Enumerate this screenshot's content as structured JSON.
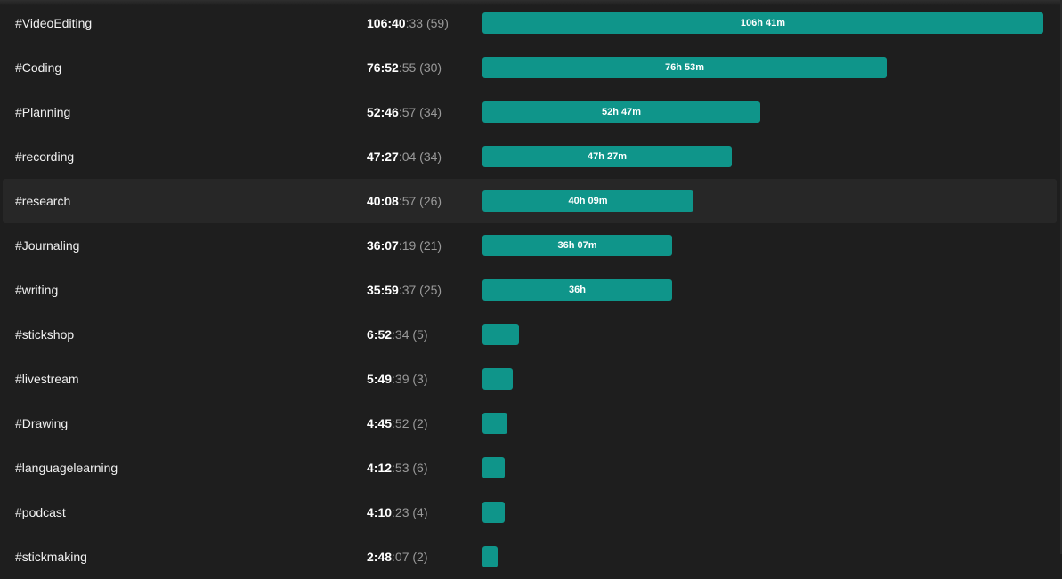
{
  "tag_stats": {
    "max_minutes": 6400.55,
    "rows": [
      {
        "tag": "#VideoEditing",
        "hm": "106:40",
        "sec": ":33",
        "count": "(59)",
        "minutes": 6400.55,
        "bar_label": "106h 41m"
      },
      {
        "tag": "#Coding",
        "hm": "76:52",
        "sec": ":55",
        "count": "(30)",
        "minutes": 4612.92,
        "bar_label": "76h 53m"
      },
      {
        "tag": "#Planning",
        "hm": "52:46",
        "sec": ":57",
        "count": "(34)",
        "minutes": 3166.95,
        "bar_label": "52h 47m"
      },
      {
        "tag": "#recording",
        "hm": "47:27",
        "sec": ":04",
        "count": "(34)",
        "minutes": 2847.07,
        "bar_label": "47h 27m"
      },
      {
        "tag": "#research",
        "hm": "40:08",
        "sec": ":57",
        "count": "(26)",
        "minutes": 2408.95,
        "bar_label": "40h 09m",
        "highlighted": true
      },
      {
        "tag": "#Journaling",
        "hm": "36:07",
        "sec": ":19",
        "count": "(21)",
        "minutes": 2167.32,
        "bar_label": "36h 07m"
      },
      {
        "tag": "#writing",
        "hm": "35:59",
        "sec": ":37",
        "count": "(25)",
        "minutes": 2159.62,
        "bar_label": "36h"
      },
      {
        "tag": "#stickshop",
        "hm": "6:52",
        "sec": ":34",
        "count": "(5)",
        "minutes": 412.57,
        "bar_label": ""
      },
      {
        "tag": "#livestream",
        "hm": "5:49",
        "sec": ":39",
        "count": "(3)",
        "minutes": 349.65,
        "bar_label": ""
      },
      {
        "tag": "#Drawing",
        "hm": "4:45",
        "sec": ":52",
        "count": "(2)",
        "minutes": 285.87,
        "bar_label": ""
      },
      {
        "tag": "#languagelearning",
        "hm": "4:12",
        "sec": ":53",
        "count": "(6)",
        "minutes": 252.88,
        "bar_label": ""
      },
      {
        "tag": "#podcast",
        "hm": "4:10",
        "sec": ":23",
        "count": "(4)",
        "minutes": 250.38,
        "bar_label": ""
      },
      {
        "tag": "#stickmaking",
        "hm": "2:48",
        "sec": ":07",
        "count": "(2)",
        "minutes": 168.12,
        "bar_label": ""
      }
    ]
  },
  "colors": {
    "background": "#1e1e1e",
    "row_highlight": "#272727",
    "bar": "#0f958a",
    "primary_text": "#ffffff",
    "secondary_text": "#9a9a9a"
  }
}
